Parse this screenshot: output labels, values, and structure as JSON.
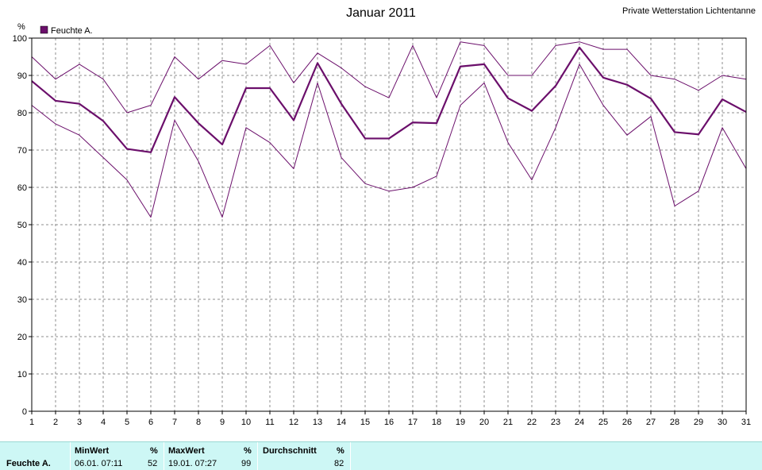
{
  "header": {
    "title": "Januar 2011",
    "station": "Private Wetterstation Lichtentanne"
  },
  "chart_data": {
    "type": "line",
    "unit_label": "%",
    "legend": "Feuchte A.",
    "x": [
      1,
      2,
      3,
      4,
      5,
      6,
      7,
      8,
      9,
      10,
      11,
      12,
      13,
      14,
      15,
      16,
      17,
      18,
      19,
      20,
      21,
      22,
      23,
      24,
      25,
      26,
      27,
      28,
      29,
      30,
      31
    ],
    "ylim": [
      0,
      100
    ],
    "yticks": [
      0,
      10,
      20,
      30,
      40,
      50,
      60,
      70,
      80,
      90,
      100
    ],
    "grid": true,
    "legend_position": "top-left",
    "colors": {
      "line": "#6b0f6b",
      "grid": "#8c8c8c",
      "axis": "#000000"
    },
    "series": [
      {
        "role": "max",
        "values": [
          95,
          89,
          93,
          89,
          80,
          82,
          95,
          89,
          94,
          93,
          98,
          88,
          96,
          92,
          87,
          84,
          98,
          84,
          99,
          98,
          90,
          90,
          98,
          99,
          97,
          97,
          90,
          89,
          86,
          90,
          89
        ]
      },
      {
        "role": "avg",
        "values": [
          88.5,
          83.2,
          82.4,
          77.8,
          70.3,
          69.4,
          84.2,
          77.2,
          71.5,
          86.6,
          86.6,
          78.0,
          93.3,
          82.4,
          73.1,
          73.1,
          77.4,
          77.2,
          92.4,
          93.0,
          83.9,
          80.5,
          87.2,
          97.5,
          89.4,
          87.5,
          83.8,
          74.8,
          74.2,
          83.6,
          80.2
        ]
      },
      {
        "role": "min",
        "values": [
          82,
          77,
          74,
          68,
          62,
          52,
          78,
          67,
          52,
          76,
          72,
          65,
          88,
          68,
          61,
          59,
          60,
          63,
          82,
          88,
          72,
          62,
          76,
          93,
          82,
          74,
          79,
          55,
          59,
          76,
          65
        ]
      }
    ]
  },
  "stats": {
    "row_label": "Feuchte A.",
    "unit": "%",
    "min": {
      "header": "MinWert",
      "datetime": "06.01.  07:11",
      "value": "52"
    },
    "max": {
      "header": "MaxWert",
      "datetime": "19.01.  07:27",
      "value": "99"
    },
    "avg": {
      "header": "Durchschnitt",
      "value": "82"
    }
  }
}
